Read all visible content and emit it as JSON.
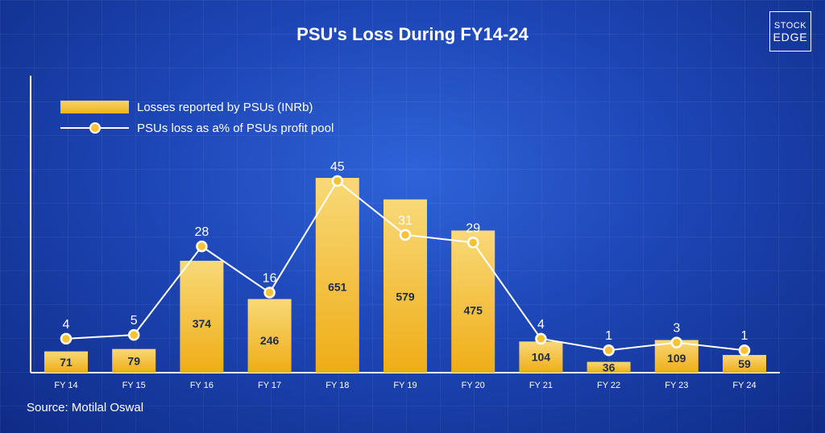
{
  "title": "PSU's Loss During FY14-24",
  "logo": {
    "line1": "STOCK",
    "line2": "EDGE"
  },
  "legend": {
    "bars": "Losses reported by PSUs (INRb)",
    "line": "PSUs loss as a% of PSUs profit pool"
  },
  "source": "Source: Motilal Oswal",
  "colors": {
    "bar": "#f0b21c",
    "line": "#ffffff",
    "marker": "#f7c233"
  },
  "chart_data": {
    "type": "bar",
    "categories": [
      "FY 14",
      "FY 15",
      "FY 16",
      "FY 17",
      "FY 18",
      "FY 19",
      "FY 20",
      "FY 21",
      "FY 22",
      "FY 23",
      "FY 24"
    ],
    "series": [
      {
        "name": "Losses reported by PSUs (INRb)",
        "type": "bar",
        "values": [
          71,
          79,
          374,
          246,
          651,
          579,
          475,
          104,
          36,
          109,
          59
        ]
      },
      {
        "name": "PSUs loss as a% of PSUs profit pool",
        "type": "line",
        "values": [
          4,
          5,
          28,
          16,
          45,
          31,
          29,
          4,
          1,
          3,
          1
        ]
      }
    ],
    "legend_position": "top-left"
  }
}
